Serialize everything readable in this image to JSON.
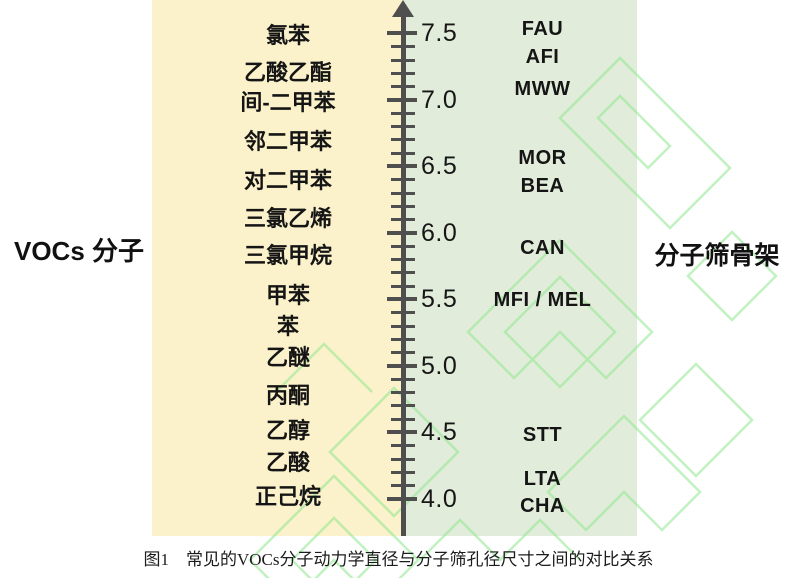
{
  "figure": {
    "caption": "图1　常见的VOCs分子动力学直径与分子筛孔径尺寸之间的对比关系"
  },
  "chart_data": {
    "type": "scatter",
    "title": "常见的VOCs分子动力学直径与分子筛孔径尺寸之间的对比关系",
    "layout": "dual-sided labels on shared vertical scale, arrow pointing up",
    "axis": {
      "min": 4.0,
      "max": 7.5,
      "minor_step": 0.1,
      "tick_values": [
        7.5,
        7.0,
        6.5,
        6.0,
        5.5,
        5.0,
        4.5,
        4.0
      ]
    },
    "series": [
      {
        "name": "VOCs 分子",
        "side": "left",
        "points": [
          {
            "label": "氯苯",
            "value": 7.48
          },
          {
            "label": "乙酸乙酯",
            "value": 7.2
          },
          {
            "label": "间-二甲苯",
            "value": 6.97
          },
          {
            "label": "邻二甲苯",
            "value": 6.68
          },
          {
            "label": "对二甲苯",
            "value": 6.39
          },
          {
            "label": "三氯乙烯",
            "value": 6.1
          },
          {
            "label": "三氯甲烷",
            "value": 5.82
          },
          {
            "label": "甲苯",
            "value": 5.52
          },
          {
            "label": "苯",
            "value": 5.29
          },
          {
            "label": "乙醚",
            "value": 5.06
          },
          {
            "label": "丙酮",
            "value": 4.77
          },
          {
            "label": "乙醇",
            "value": 4.51
          },
          {
            "label": "乙酸",
            "value": 4.27
          },
          {
            "label": "正己烷",
            "value": 4.01
          }
        ]
      },
      {
        "name": "分子筛骨架",
        "side": "right",
        "points": [
          {
            "label": "FAU",
            "value": 7.53
          },
          {
            "label": "AFI",
            "value": 7.32
          },
          {
            "label": "MWW",
            "value": 7.08
          },
          {
            "label": "MOR",
            "value": 6.56
          },
          {
            "label": "BEA",
            "value": 6.35
          },
          {
            "label": "CAN",
            "value": 5.88
          },
          {
            "label": "MFI / MEL",
            "value": 5.49
          },
          {
            "label": "STT",
            "value": 4.48
          },
          {
            "label": "LTA",
            "value": 4.15
          },
          {
            "label": "CHA",
            "value": 3.94
          }
        ]
      }
    ]
  },
  "colors": {
    "left_panel_bg": "#fbf1ca",
    "right_panel_bg": "#e2ecda",
    "axis": "#4f4f4f",
    "watermark": "#8fe78f"
  }
}
